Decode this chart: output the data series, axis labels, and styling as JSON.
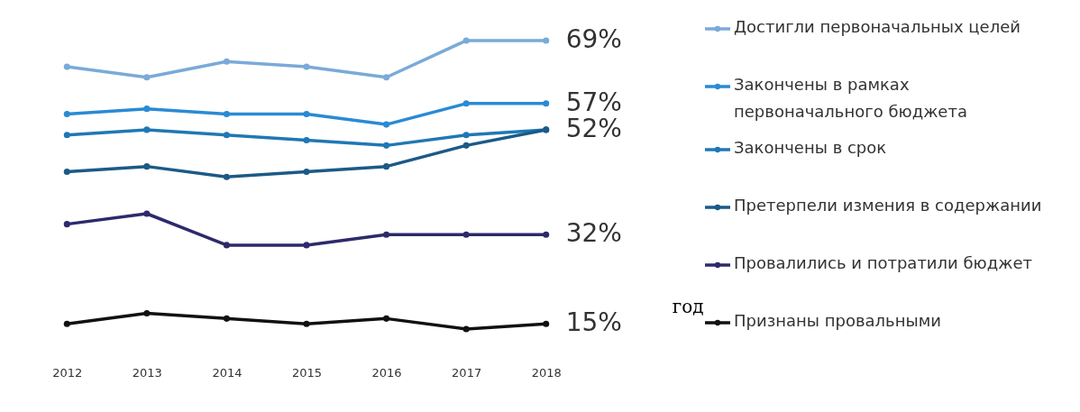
{
  "chart_data": {
    "type": "line",
    "categories": [
      "2012",
      "2013",
      "2014",
      "2015",
      "2016",
      "2017",
      "2018"
    ],
    "xlabel": "год",
    "tick_labels": "x",
    "grid": false,
    "legend": "right",
    "marker": "circle",
    "line_style": "solid",
    "series": [
      {
        "name": "Достигли первоначальных целей",
        "color": "#7aaad8",
        "values": [
          64,
          62,
          65,
          64,
          62,
          69,
          69
        ],
        "value_labels": [
          null,
          null,
          null,
          null,
          null,
          null,
          "69%"
        ]
      },
      {
        "name": "Закончены в рамках первоначального бюджета",
        "color": "#2a8ad4",
        "values": [
          55,
          56,
          55,
          55,
          53,
          57,
          57
        ],
        "value_labels": [
          null,
          null,
          null,
          null,
          null,
          null,
          "57%"
        ]
      },
      {
        "name": "Закончены в срок",
        "color": "#1f78b4",
        "values": [
          51,
          52,
          51,
          50,
          49,
          51,
          52
        ],
        "value_labels": [
          null,
          null,
          null,
          null,
          null,
          null,
          "52%"
        ]
      },
      {
        "name": "Претерпели измения в содержании",
        "color": "#1b5a86",
        "values": [
          44,
          45,
          43,
          44,
          45,
          49,
          52
        ]
      },
      {
        "name": "Провалились и потратили бюджет",
        "color": "#2d2a6b",
        "values": [
          34,
          36,
          30,
          30,
          32,
          32,
          32
        ],
        "value_labels": [
          null,
          null,
          null,
          null,
          null,
          null,
          "32%"
        ]
      },
      {
        "name": "Признаны провальными",
        "color": "#111111",
        "values": [
          15,
          17,
          16,
          15,
          16,
          14,
          15
        ],
        "value_labels": [
          null,
          null,
          null,
          null,
          null,
          null,
          "15%"
        ]
      }
    ]
  }
}
